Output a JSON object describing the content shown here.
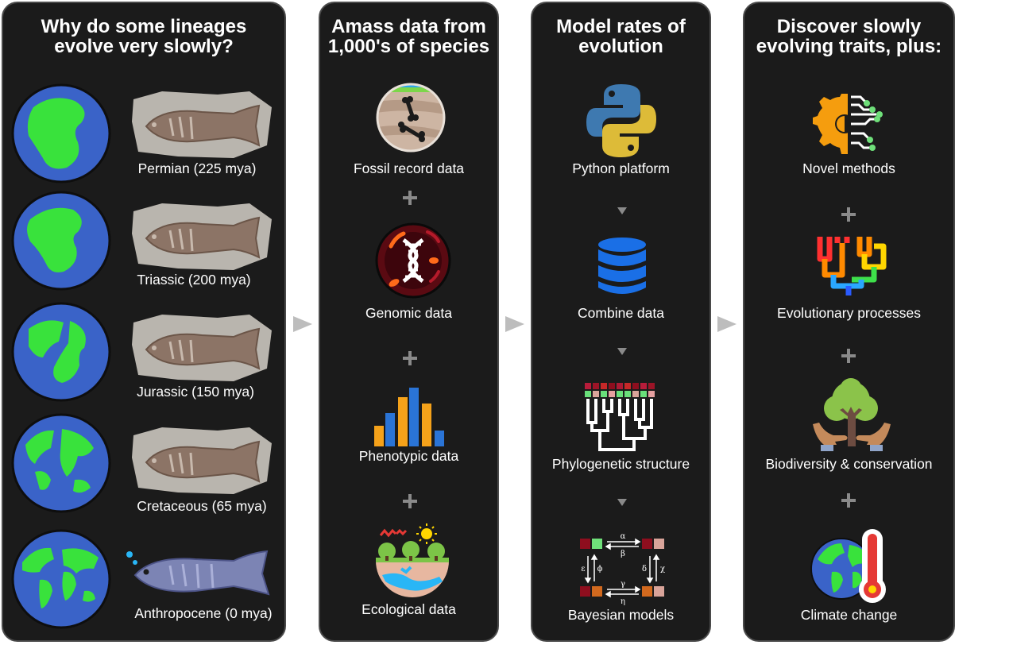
{
  "panels": [
    {
      "title": "Why do some lineages\nevolve very slowly?",
      "items": [
        "Permian (225 mya)",
        "Triassic (200 mya)",
        "Jurassic (150 mya)",
        "Cretaceous (65 mya)",
        "Anthropocene (0 mya)"
      ]
    },
    {
      "title": "Amass data from\n1,000's of species",
      "items": [
        "Fossil record data",
        "Genomic data",
        "Phenotypic data",
        "Ecological data"
      ]
    },
    {
      "title": "Model rates of\nevolution",
      "items": [
        "Python platform",
        "Combine data",
        "Phylogenetic structure",
        "Bayesian models"
      ]
    },
    {
      "title": "Discover slowly\nevolving traits, plus:",
      "items": [
        "Novel methods",
        "Evolutionary processes",
        "Biodiversity & conservation",
        "Climate change"
      ]
    }
  ],
  "bayes_symbols": {
    "alpha": "α",
    "beta": "β",
    "gamma": "γ",
    "eta": "η",
    "epsilon": "ε",
    "phi": "ϕ",
    "delta": "δ",
    "chi": "χ"
  },
  "colors": {
    "panel_bg": "#1b1b1b",
    "ocean": "#3a63c8",
    "land": "#39e23c",
    "fossil_slab": "#b9b5ae",
    "fish_fossil": "#8c7466",
    "coelacanth": "#7c84b4",
    "bar_blue": "#2a74d6",
    "bar_orange": "#f5a21a",
    "db_blue": "#1a6fe6"
  }
}
